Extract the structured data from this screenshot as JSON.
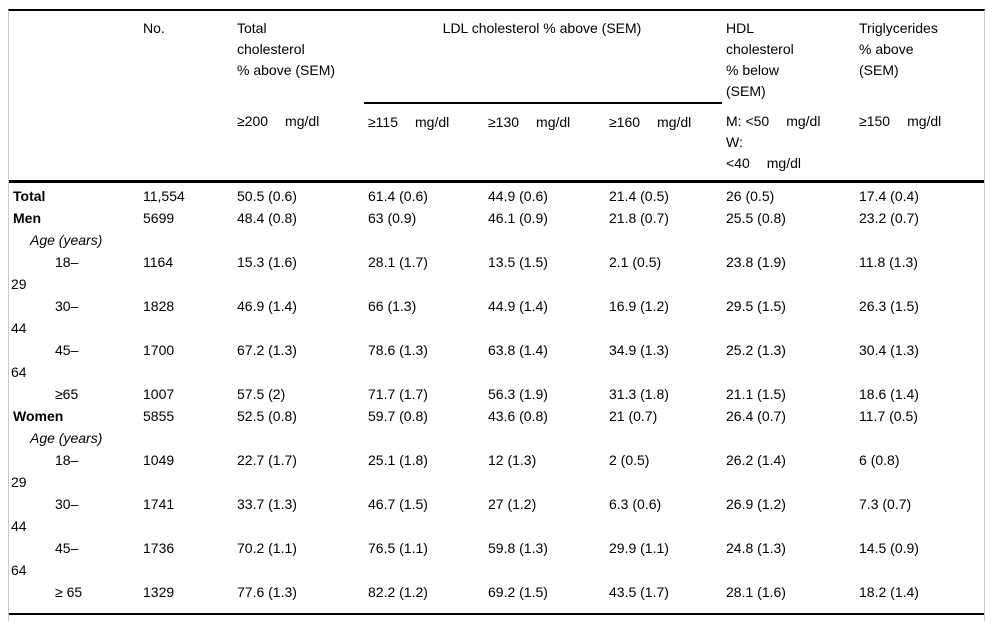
{
  "table": {
    "header": {
      "no": "No.",
      "total": {
        "l1": "Total",
        "l2": "cholesterol",
        "l3": "% above (SEM)"
      },
      "ldl_group": "LDL cholesterol % above (SEM)",
      "hdl": {
        "l1": "HDL",
        "l2": "cholesterol",
        "l3": "% below",
        "l4": "(SEM)"
      },
      "trig": {
        "l1": "Triglycerides",
        "l2": "% above",
        "l3": "(SEM)"
      }
    },
    "subheader": {
      "total": {
        "threshold": "≥200",
        "unit": "mg/dl"
      },
      "ldl_115": {
        "threshold": "≥115",
        "unit": "mg/dl"
      },
      "ldl_130": {
        "threshold": "≥130",
        "unit": "mg/dl"
      },
      "ldl_160": {
        "threshold": "≥160",
        "unit": "mg/dl"
      },
      "hdl": {
        "men_threshold": "M: <50",
        "men_unit": "mg/dl",
        "women_prefix": "W:",
        "women_threshold": "<40",
        "women_unit": "mg/dl"
      },
      "trig": {
        "threshold": "≥150",
        "unit": "mg/dl"
      }
    },
    "rows": [
      {
        "label": "Total",
        "label2": "",
        "style": "group",
        "no": "11,554",
        "cells": [
          "50.5 (0.6)",
          "61.4 (0.6)",
          "44.9 (0.6)",
          "21.4 (0.5)",
          "26 (0.5)",
          "17.4 (0.4)"
        ]
      },
      {
        "label": "Men",
        "label2": "",
        "style": "group",
        "no": "5699",
        "cells": [
          "48.4 (0.8)",
          "63 (0.9)",
          "46.1 (0.9)",
          "21.8 (0.7)",
          "25.5 (0.8)",
          "23.2 (0.7)"
        ]
      },
      {
        "label": "Age (years)",
        "label2": "",
        "style": "section",
        "no": "",
        "cells": [
          "",
          "",
          "",
          "",
          "",
          ""
        ]
      },
      {
        "label": "18–",
        "label2": "29",
        "style": "age",
        "no": "1164",
        "cells": [
          "15.3 (1.6)",
          "28.1 (1.7)",
          "13.5 (1.5)",
          "2.1 (0.5)",
          "23.8 (1.9)",
          "11.8 (1.3)"
        ]
      },
      {
        "label": "30–",
        "label2": "44",
        "style": "age",
        "no": "1828",
        "cells": [
          "46.9 (1.4)",
          "66 (1.3)",
          "44.9 (1.4)",
          "16.9 (1.2)",
          "29.5 (1.5)",
          "26.3 (1.5)"
        ]
      },
      {
        "label": "45–",
        "label2": "64",
        "style": "age",
        "no": "1700",
        "cells": [
          "67.2 (1.3)",
          "78.6 (1.3)",
          "63.8 (1.4)",
          "34.9 (1.3)",
          "25.2 (1.3)",
          "30.4 (1.3)"
        ]
      },
      {
        "label": "≥65",
        "label2": "",
        "style": "age",
        "no": "1007",
        "cells": [
          "57.5 (2)",
          "71.7 (1.7)",
          "56.3 (1.9)",
          "31.3 (1.8)",
          "21.1 (1.5)",
          "18.6 (1.4)"
        ]
      },
      {
        "label": "Women",
        "label2": "",
        "style": "group",
        "no": "5855",
        "cells": [
          "52.5 (0.8)",
          "59.7 (0.8)",
          "43.6 (0.8)",
          "21 (0.7)",
          "26.4 (0.7)",
          "11.7 (0.5)"
        ]
      },
      {
        "label": "Age (years)",
        "label2": "",
        "style": "section",
        "no": "",
        "cells": [
          "",
          "",
          "",
          "",
          "",
          ""
        ]
      },
      {
        "label": "18–",
        "label2": "29",
        "style": "age",
        "no": "1049",
        "cells": [
          "22.7 (1.7)",
          "25.1 (1.8)",
          "12 (1.3)",
          "2 (0.5)",
          "26.2 (1.4)",
          "6 (0.8)"
        ]
      },
      {
        "label": "30–",
        "label2": "44",
        "style": "age",
        "no": "1741",
        "cells": [
          "33.7 (1.3)",
          "46.7 (1.5)",
          "27 (1.2)",
          "6.3 (0.6)",
          "26.9 (1.2)",
          "7.3 (0.7)"
        ]
      },
      {
        "label": "45–",
        "label2": "64",
        "style": "age",
        "no": "1736",
        "cells": [
          "70.2 (1.1)",
          "76.5 (1.1)",
          "59.8 (1.3)",
          "29.9 (1.1)",
          "24.8 (1.3)",
          "14.5 (0.9)"
        ]
      },
      {
        "label": "≥ 65",
        "label2": "",
        "style": "age",
        "no": "1329",
        "cells": [
          "77.6 (1.3)",
          "82.2 (1.2)",
          "69.2 (1.5)",
          "43.5 (1.7)",
          "28.1 (1.6)",
          "18.2 (1.4)"
        ]
      }
    ]
  },
  "colors": {
    "background": "#ffffff",
    "text": "#000000",
    "rule": "#000000",
    "frame_border": "#c9c9c9"
  }
}
